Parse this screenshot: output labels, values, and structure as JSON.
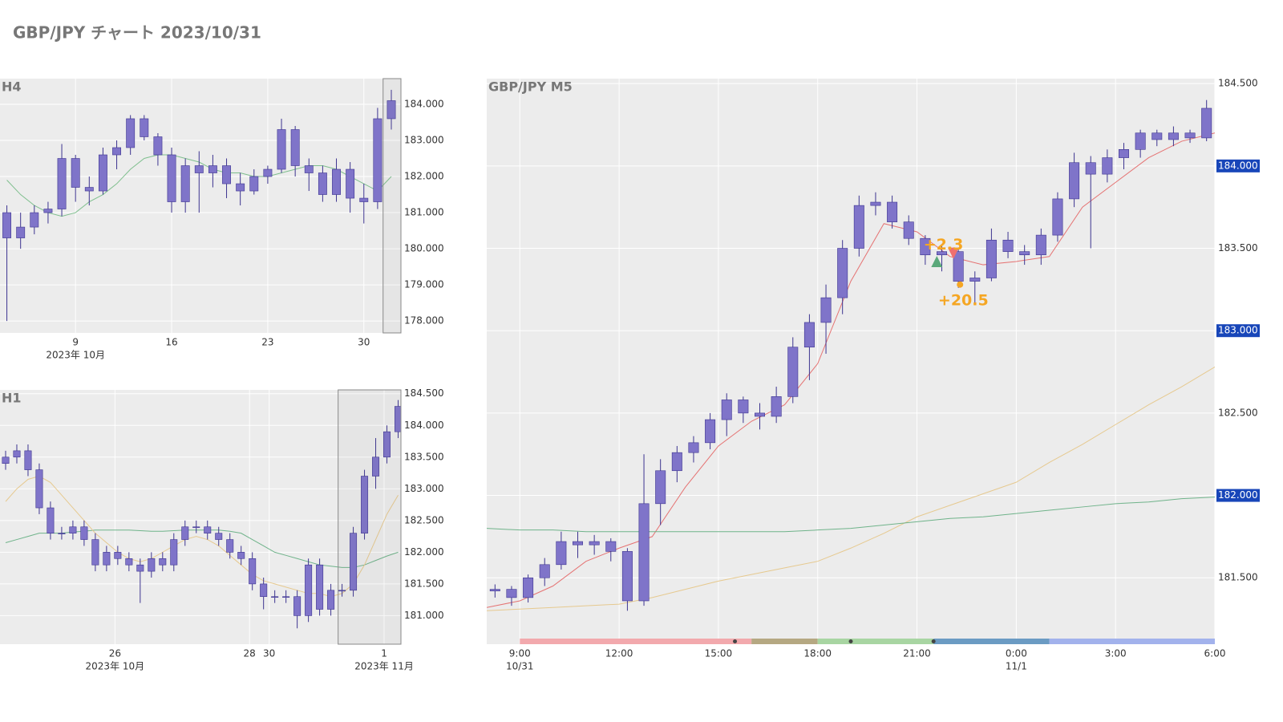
{
  "title": "GBP/JPY チャート 2023/10/31",
  "chart_data": [
    {
      "type": "candlestick",
      "title": "H4",
      "color": "#7f74c9",
      "grid": true,
      "x": [
        4,
        5,
        6,
        7,
        8,
        9,
        10,
        11,
        12,
        13,
        14,
        15,
        16,
        17,
        18,
        19,
        20,
        21,
        22,
        23,
        24,
        25,
        26,
        27,
        28,
        29,
        30,
        31,
        32
      ],
      "open": [
        181.0,
        180.3,
        180.6,
        181.0,
        181.1,
        182.5,
        181.7,
        181.6,
        182.6,
        182.8,
        183.6,
        183.1,
        182.6,
        181.3,
        182.3,
        182.1,
        182.3,
        181.8,
        181.6,
        182.0,
        182.2,
        183.3,
        182.3,
        182.1,
        181.5,
        182.2,
        181.4,
        181.3,
        183.6
      ],
      "high": [
        181.2,
        181.0,
        181.2,
        181.3,
        182.9,
        182.6,
        182.0,
        182.8,
        183.0,
        183.7,
        183.7,
        183.2,
        182.8,
        182.5,
        182.7,
        182.6,
        182.5,
        182.1,
        182.2,
        182.3,
        183.6,
        183.4,
        182.5,
        182.3,
        182.5,
        182.4,
        181.8,
        183.9,
        184.4
      ],
      "low": [
        178.0,
        180.0,
        180.4,
        180.7,
        180.9,
        181.3,
        181.2,
        181.5,
        182.2,
        182.6,
        183.0,
        182.3,
        181.0,
        181.0,
        181.0,
        181.7,
        181.4,
        181.2,
        181.5,
        181.8,
        182.1,
        182.0,
        181.6,
        181.3,
        181.3,
        181.0,
        180.7,
        181.1,
        183.3
      ],
      "close": [
        180.3,
        180.6,
        181.0,
        181.1,
        182.5,
        181.7,
        181.6,
        182.6,
        182.8,
        183.6,
        183.1,
        182.6,
        181.3,
        182.3,
        182.1,
        182.3,
        181.8,
        181.6,
        182.0,
        182.2,
        183.3,
        182.3,
        182.1,
        181.5,
        182.2,
        181.4,
        181.3,
        183.6,
        184.1
      ],
      "ma": [
        {
          "color": "#7fbf8e",
          "values": [
            181.9,
            181.5,
            181.2,
            181.0,
            180.9,
            181.0,
            181.3,
            181.5,
            181.8,
            182.2,
            182.5,
            182.6,
            182.6,
            182.5,
            182.4,
            182.2,
            182.1,
            182.1,
            182.0,
            182.0,
            182.1,
            182.2,
            182.3,
            182.3,
            182.2,
            182.0,
            181.8,
            181.6,
            182.0
          ]
        }
      ],
      "highlight_range": [
        31.4,
        32.7
      ],
      "xlim": [
        3.5,
        32.7
      ],
      "xticks": [
        9,
        16,
        23,
        30
      ],
      "x_sublabels": [
        {
          "value": 9,
          "label": "2023年 10月"
        }
      ],
      "ylim": [
        177.67,
        184.71
      ],
      "yticks": [
        {
          "value": 178,
          "label": "178.000"
        },
        {
          "value": 179,
          "label": "179.000"
        },
        {
          "value": 180,
          "label": "180.000"
        },
        {
          "value": 181,
          "label": "181.000"
        },
        {
          "value": 182,
          "label": "182.000"
        },
        {
          "value": 183,
          "label": "183.000"
        },
        {
          "value": 184,
          "label": "184.000"
        }
      ]
    },
    {
      "type": "candlestick",
      "title": "H1",
      "color": "#7f74c9",
      "grid": true,
      "x": [
        2,
        6,
        10,
        14,
        18,
        22,
        26,
        30,
        34,
        38,
        42,
        46,
        50,
        54,
        58,
        62,
        66,
        70,
        74,
        78,
        82,
        86,
        90,
        94,
        98,
        102,
        106,
        110,
        114,
        118,
        122,
        126,
        130,
        134,
        138,
        142
      ],
      "open": [
        183.4,
        183.5,
        183.6,
        183.3,
        182.7,
        182.3,
        182.3,
        182.4,
        182.2,
        181.8,
        182.0,
        181.9,
        181.8,
        181.7,
        181.9,
        181.8,
        182.2,
        182.4,
        182.4,
        182.3,
        182.2,
        182.0,
        181.9,
        181.5,
        181.3,
        181.3,
        181.3,
        181.0,
        181.8,
        181.1,
        181.4,
        181.4,
        182.3,
        183.2,
        183.5,
        183.9
      ],
      "high": [
        183.6,
        183.7,
        183.7,
        183.4,
        182.8,
        182.4,
        182.5,
        182.5,
        182.3,
        182.1,
        182.1,
        182.0,
        181.9,
        182.0,
        182.0,
        182.3,
        182.5,
        182.5,
        182.5,
        182.4,
        182.3,
        182.1,
        182.0,
        181.6,
        181.4,
        181.4,
        181.4,
        181.9,
        181.9,
        181.5,
        181.5,
        182.4,
        183.3,
        183.8,
        184.0,
        184.4
      ],
      "low": [
        183.3,
        183.4,
        183.2,
        182.6,
        182.2,
        182.2,
        182.2,
        182.1,
        181.7,
        181.7,
        181.8,
        181.7,
        181.2,
        181.6,
        181.7,
        181.7,
        182.1,
        182.3,
        182.2,
        182.1,
        181.9,
        181.8,
        181.4,
        181.1,
        181.2,
        181.2,
        180.8,
        180.9,
        181.0,
        181.0,
        181.3,
        181.3,
        182.2,
        183.0,
        183.4,
        183.8
      ],
      "close": [
        183.5,
        183.6,
        183.3,
        182.7,
        182.3,
        182.3,
        182.4,
        182.2,
        181.8,
        182.0,
        181.9,
        181.8,
        181.7,
        181.9,
        181.8,
        182.2,
        182.4,
        182.4,
        182.3,
        182.2,
        182.0,
        181.9,
        181.5,
        181.3,
        181.3,
        181.3,
        181.0,
        181.8,
        181.1,
        181.4,
        181.4,
        182.3,
        183.2,
        183.5,
        183.9,
        184.3
      ],
      "ma": [
        {
          "color": "#6fb38a",
          "values": [
            182.15,
            182.2,
            182.25,
            182.3,
            182.3,
            182.3,
            182.32,
            182.33,
            182.35,
            182.35,
            182.35,
            182.35,
            182.34,
            182.33,
            182.33,
            182.34,
            182.35,
            182.35,
            182.35,
            182.35,
            182.33,
            182.3,
            182.2,
            182.1,
            182.0,
            181.95,
            181.9,
            181.85,
            181.8,
            181.78,
            181.76,
            181.76,
            181.8,
            181.87,
            181.94,
            182.0
          ]
        },
        {
          "color": "#e6c98f",
          "values": [
            182.8,
            183.0,
            183.15,
            183.2,
            183.1,
            182.9,
            182.7,
            182.5,
            182.3,
            182.15,
            182.0,
            181.9,
            181.85,
            181.9,
            182.0,
            182.1,
            182.2,
            182.25,
            182.2,
            182.1,
            181.95,
            181.8,
            181.65,
            181.55,
            181.5,
            181.45,
            181.4,
            181.35,
            181.35,
            181.3,
            181.35,
            181.5,
            181.8,
            182.2,
            182.6,
            182.9
          ]
        }
      ],
      "highlight_range": [
        120.6,
        143
      ],
      "xlim": [
        0,
        143
      ],
      "xticks": [
        {
          "value": 41,
          "label": "26"
        },
        {
          "value": 89,
          "label": "28"
        },
        {
          "value": 96,
          "label": "30"
        },
        {
          "value": 137,
          "label": "1"
        }
      ],
      "x_sublabels": [
        {
          "value": 41,
          "label": "2023年 10月"
        },
        {
          "value": 137,
          "label": "2023年 11月"
        }
      ],
      "ylim": [
        180.55,
        184.56
      ],
      "yticks": [
        {
          "value": 181,
          "label": "181.000"
        },
        {
          "value": 181.5,
          "label": "181.500"
        },
        {
          "value": 182,
          "label": "182.000"
        },
        {
          "value": 182.5,
          "label": "182.500"
        },
        {
          "value": 183,
          "label": "183.000"
        },
        {
          "value": 183.5,
          "label": "183.500"
        },
        {
          "value": 184,
          "label": "184.000"
        },
        {
          "value": 184.5,
          "label": "184.500"
        }
      ]
    },
    {
      "type": "candlestick",
      "title": "GBP/JPY M5",
      "color": "#7f74c9",
      "grid": true,
      "x": [
        8.25,
        8.75,
        9.25,
        9.75,
        10.25,
        10.75,
        11.25,
        11.75,
        12.25,
        12.75,
        13.25,
        13.75,
        14.25,
        14.75,
        15.25,
        15.75,
        16.25,
        16.75,
        17.25,
        17.75,
        18.25,
        18.75,
        19.25,
        19.75,
        20.25,
        20.75,
        21.25,
        21.75,
        22.25,
        22.75,
        23.25,
        23.75,
        24.25,
        24.75,
        25.25,
        25.75,
        26.25,
        26.75,
        27.25,
        27.75,
        28.25,
        28.75,
        29.25,
        29.75
      ],
      "open": [
        181.42,
        181.43,
        181.38,
        181.5,
        181.58,
        181.72,
        181.7,
        181.72,
        181.66,
        181.36,
        181.95,
        182.15,
        182.26,
        182.32,
        182.46,
        182.58,
        182.5,
        182.48,
        182.6,
        182.9,
        183.05,
        183.2,
        183.5,
        183.76,
        183.78,
        183.66,
        183.56,
        183.46,
        183.48,
        183.3,
        183.32,
        183.55,
        183.48,
        183.46,
        183.58,
        183.8,
        184.02,
        183.95,
        184.05,
        184.1,
        184.2,
        184.16,
        184.2,
        184.17
      ],
      "high": [
        181.46,
        181.45,
        181.52,
        181.62,
        181.78,
        181.78,
        181.76,
        181.74,
        181.68,
        182.25,
        182.22,
        182.3,
        182.36,
        182.5,
        182.62,
        182.6,
        182.56,
        182.66,
        182.96,
        183.1,
        183.28,
        183.55,
        183.82,
        183.84,
        183.82,
        183.7,
        183.58,
        183.52,
        183.5,
        183.36,
        183.62,
        183.6,
        183.52,
        183.62,
        183.84,
        184.08,
        184.06,
        184.1,
        184.14,
        184.22,
        184.22,
        184.24,
        184.22,
        184.4
      ],
      "low": [
        181.38,
        181.33,
        181.35,
        181.45,
        181.55,
        181.62,
        181.64,
        181.6,
        181.3,
        181.33,
        181.82,
        182.08,
        182.2,
        182.28,
        182.36,
        182.44,
        182.4,
        182.44,
        182.56,
        182.7,
        182.86,
        183.1,
        183.45,
        183.7,
        183.62,
        183.52,
        183.4,
        183.36,
        183.26,
        183.16,
        183.3,
        183.44,
        183.4,
        183.4,
        183.54,
        183.75,
        183.5,
        183.9,
        183.98,
        184.05,
        184.12,
        184.12,
        184.14,
        184.15
      ],
      "close": [
        181.43,
        181.38,
        181.5,
        181.58,
        181.72,
        181.7,
        181.72,
        181.66,
        181.36,
        181.95,
        182.15,
        182.26,
        182.32,
        182.46,
        182.58,
        182.5,
        182.48,
        182.6,
        182.9,
        183.05,
        183.2,
        183.5,
        183.76,
        183.78,
        183.66,
        183.56,
        183.46,
        183.48,
        183.3,
        183.32,
        183.55,
        183.48,
        183.46,
        183.58,
        183.8,
        184.02,
        183.95,
        184.05,
        184.1,
        184.2,
        184.16,
        184.2,
        184.17,
        184.35
      ],
      "ma": [
        {
          "color": "#e57373",
          "x": [
            8,
            9,
            10,
            11,
            12,
            13,
            14,
            15,
            16,
            17,
            18,
            19,
            20,
            21,
            22,
            23,
            24,
            25,
            26,
            27,
            28,
            29,
            30
          ],
          "values": [
            181.32,
            181.36,
            181.45,
            181.6,
            181.68,
            181.75,
            182.05,
            182.3,
            182.45,
            182.55,
            182.8,
            183.3,
            183.65,
            183.6,
            183.45,
            183.4,
            183.42,
            183.45,
            183.75,
            183.9,
            184.05,
            184.15,
            184.2
          ]
        },
        {
          "color": "#e6c98f",
          "x": [
            8,
            9,
            10,
            11,
            12,
            13,
            14,
            15,
            16,
            17,
            18,
            19,
            20,
            21,
            22,
            23,
            24,
            25,
            26,
            27,
            28,
            29,
            30
          ],
          "values": [
            181.3,
            181.31,
            181.32,
            181.33,
            181.34,
            181.38,
            181.43,
            181.48,
            181.52,
            181.56,
            181.6,
            181.68,
            181.77,
            181.87,
            181.94,
            182.01,
            182.08,
            182.2,
            182.31,
            182.43,
            182.55,
            182.66,
            182.78
          ]
        },
        {
          "color": "#6fb38a",
          "x": [
            8,
            9,
            10,
            11,
            12,
            13,
            14,
            15,
            16,
            17,
            18,
            19,
            20,
            21,
            22,
            23,
            24,
            25,
            26,
            27,
            28,
            29,
            30
          ],
          "values": [
            181.8,
            181.79,
            181.79,
            181.78,
            181.78,
            181.78,
            181.78,
            181.78,
            181.78,
            181.78,
            181.79,
            181.8,
            181.82,
            181.84,
            181.86,
            181.87,
            181.89,
            181.91,
            181.93,
            181.95,
            181.96,
            181.98,
            181.99
          ]
        }
      ],
      "markers": [
        {
          "x": 21.6,
          "y": 183.42,
          "shape": "triangle-up",
          "color": "#5aa87a"
        },
        {
          "x": 22.1,
          "y": 183.47,
          "shape": "triangle-down",
          "color": "#ef6f6f"
        },
        {
          "x": 22.3,
          "y": 183.28,
          "shape": "circle",
          "color": "#f5a623"
        }
      ],
      "annotations": [
        {
          "text": "+2.3",
          "x": 21.8,
          "y": 183.52,
          "color": "#f5a623"
        },
        {
          "text": "+20.5",
          "x": 22.4,
          "y": 183.18,
          "color": "#f5a623"
        }
      ],
      "sessions": [
        {
          "start": 9,
          "end": 16,
          "color": "#f2a9ad"
        },
        {
          "start": 16,
          "end": 18,
          "color": "#b5a882"
        },
        {
          "start": 18,
          "end": 21.5,
          "color": "#a8d5a2"
        },
        {
          "start": 21.5,
          "end": 25,
          "color": "#6b9bc3"
        },
        {
          "start": 25,
          "end": 30,
          "color": "#a2b2ec"
        }
      ],
      "session_dots": [
        15.5,
        19,
        21.5
      ],
      "xlim": [
        8,
        30
      ],
      "xticks": [
        {
          "value": 9,
          "label": "9:00"
        },
        {
          "value": 12,
          "label": "12:00"
        },
        {
          "value": 15,
          "label": "15:00"
        },
        {
          "value": 18,
          "label": "18:00"
        },
        {
          "value": 21,
          "label": "21:00"
        },
        {
          "value": 24,
          "label": "0:00"
        },
        {
          "value": 27,
          "label": "3:00"
        },
        {
          "value": 30,
          "label": "6:00"
        }
      ],
      "x_sublabels": [
        {
          "value": 9,
          "label": "10/31"
        },
        {
          "value": 24,
          "label": "11/1"
        }
      ],
      "ylim": [
        181.097,
        184.53
      ],
      "yticks": [
        {
          "value": 181.5,
          "label": "181.500"
        },
        {
          "value": 182,
          "label": "182.000",
          "badge": "#1846b9"
        },
        {
          "value": 182.5,
          "label": "182.500"
        },
        {
          "value": 183,
          "label": "183.000",
          "badge": "#1846b9"
        },
        {
          "value": 183.5,
          "label": "183.500"
        },
        {
          "value": 184,
          "label": "184.000",
          "badge": "#1846b9"
        },
        {
          "value": 184.5,
          "label": "184.500"
        }
      ]
    }
  ]
}
